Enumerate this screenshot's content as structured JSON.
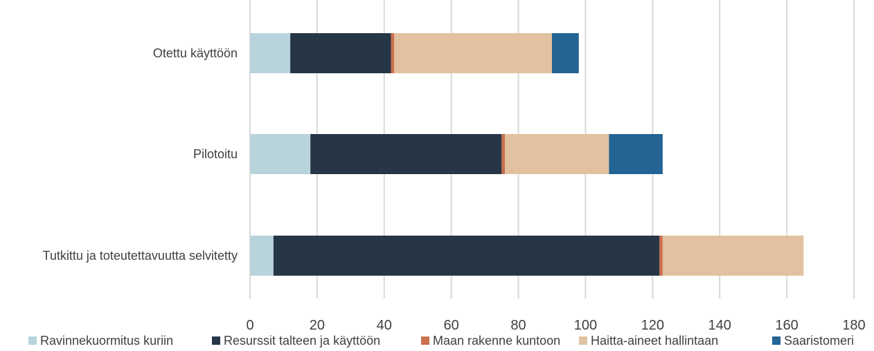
{
  "chart_data": {
    "type": "bar",
    "orientation": "horizontal",
    "stacked": true,
    "categories": [
      "Otettu käyttöön",
      "Pilotoitu",
      "Tutkittu ja toteutettavuutta selvitetty"
    ],
    "series": [
      {
        "name": "Ravinnekuormitus kuriin",
        "color": "#b9d3dc",
        "values": [
          12,
          18,
          7
        ]
      },
      {
        "name": "Resurssit talteen ja käyttöön",
        "color": "#263646",
        "values": [
          30,
          57,
          115
        ]
      },
      {
        "name": "Maan rakenne kuntoon",
        "color": "#c9704e",
        "values": [
          1,
          1,
          1
        ]
      },
      {
        "name": "Haitta-aineet hallintaan",
        "color": "#e1c19f",
        "values": [
          47,
          31,
          42
        ]
      },
      {
        "name": "Saaristomeri",
        "color": "#236495",
        "values": [
          8,
          16,
          0
        ]
      }
    ],
    "xlim": [
      0,
      180
    ],
    "xticks": [
      0,
      20,
      40,
      60,
      80,
      100,
      120,
      140,
      160,
      180
    ],
    "grid": "vertical",
    "legend": "bottom",
    "title": "",
    "xlabel": "",
    "ylabel": ""
  }
}
